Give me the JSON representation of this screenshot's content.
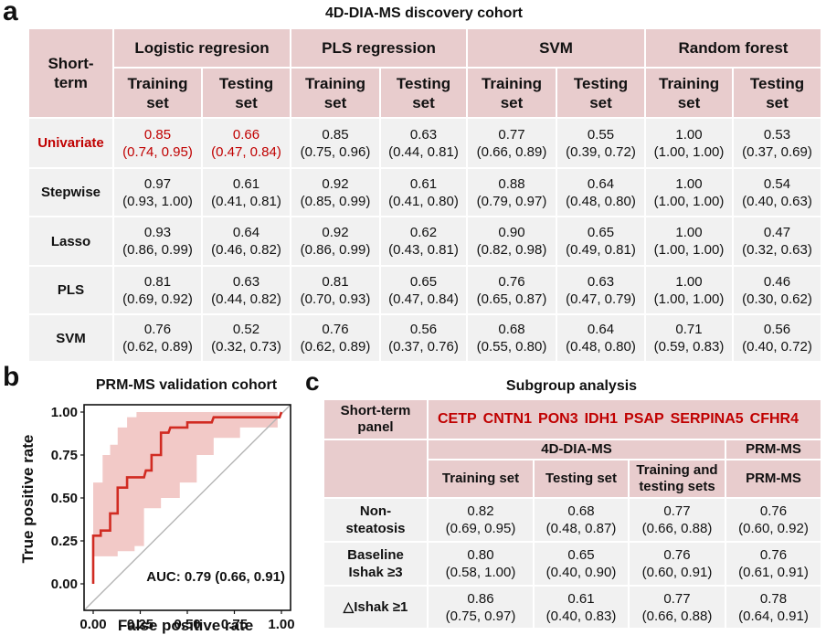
{
  "panels": {
    "a": {
      "letter": "a",
      "title": "4D-DIA-MS discovery cohort",
      "row_header": "Short-term",
      "models": [
        "Logistic regresion",
        "PLS regression",
        "SVM",
        "Random forest"
      ],
      "set_labels": [
        "Training set",
        "Testing set"
      ],
      "rows": [
        {
          "label": "Univariate",
          "highlight": true,
          "cells": [
            {
              "auc": "0.85",
              "ci": "(0.74, 0.95)",
              "red": true
            },
            {
              "auc": "0.66",
              "ci": "(0.47, 0.84)",
              "red": true
            },
            {
              "auc": "0.85",
              "ci": "(0.75, 0.96)"
            },
            {
              "auc": "0.63",
              "ci": "(0.44, 0.81)"
            },
            {
              "auc": "0.77",
              "ci": "(0.66, 0.89)"
            },
            {
              "auc": "0.55",
              "ci": "(0.39, 0.72)"
            },
            {
              "auc": "1.00",
              "ci": "(1.00, 1.00)"
            },
            {
              "auc": "0.53",
              "ci": "(0.37, 0.69)"
            }
          ]
        },
        {
          "label": "Stepwise",
          "cells": [
            {
              "auc": "0.97",
              "ci": "(0.93, 1.00)"
            },
            {
              "auc": "0.61",
              "ci": "(0.41, 0.81)"
            },
            {
              "auc": "0.92",
              "ci": "(0.85, 0.99)"
            },
            {
              "auc": "0.61",
              "ci": "(0.41, 0.80)"
            },
            {
              "auc": "0.88",
              "ci": "(0.79, 0.97)"
            },
            {
              "auc": "0.64",
              "ci": "(0.48, 0.80)"
            },
            {
              "auc": "1.00",
              "ci": "(1.00, 1.00)"
            },
            {
              "auc": "0.54",
              "ci": "(0.40, 0.63)"
            }
          ]
        },
        {
          "label": "Lasso",
          "cells": [
            {
              "auc": "0.93",
              "ci": "(0.86, 0.99)"
            },
            {
              "auc": "0.64",
              "ci": "(0.46, 0.82)"
            },
            {
              "auc": "0.92",
              "ci": "(0.86, 0.99)"
            },
            {
              "auc": "0.62",
              "ci": "(0.43, 0.81)"
            },
            {
              "auc": "0.90",
              "ci": "(0.82, 0.98)"
            },
            {
              "auc": "0.65",
              "ci": "(0.49, 0.81)"
            },
            {
              "auc": "1.00",
              "ci": "(1.00, 1.00)"
            },
            {
              "auc": "0.47",
              "ci": "(0.32, 0.63)"
            }
          ]
        },
        {
          "label": "PLS",
          "cells": [
            {
              "auc": "0.81",
              "ci": "(0.69, 0.92)"
            },
            {
              "auc": "0.63",
              "ci": "(0.44, 0.82)"
            },
            {
              "auc": "0.81",
              "ci": "(0.70, 0.93)"
            },
            {
              "auc": "0.65",
              "ci": "(0.47, 0.84)"
            },
            {
              "auc": "0.76",
              "ci": "(0.65, 0.87)"
            },
            {
              "auc": "0.63",
              "ci": "(0.47, 0.79)"
            },
            {
              "auc": "1.00",
              "ci": "(1.00, 1.00)"
            },
            {
              "auc": "0.46",
              "ci": "(0.30, 0.62)"
            }
          ]
        },
        {
          "label": "SVM",
          "cells": [
            {
              "auc": "0.76",
              "ci": "(0.62, 0.89)"
            },
            {
              "auc": "0.52",
              "ci": "(0.32, 0.73)"
            },
            {
              "auc": "0.76",
              "ci": "(0.62, 0.89)"
            },
            {
              "auc": "0.56",
              "ci": "(0.37, 0.76)"
            },
            {
              "auc": "0.68",
              "ci": "(0.55, 0.80)"
            },
            {
              "auc": "0.64",
              "ci": "(0.48, 0.80)"
            },
            {
              "auc": "0.71",
              "ci": "(0.59, 0.83)"
            },
            {
              "auc": "0.56",
              "ci": "(0.40, 0.72)"
            }
          ]
        }
      ]
    },
    "b": {
      "letter": "b"
    },
    "c": {
      "letter": "c",
      "title": "Subgroup analysis",
      "panel_label": "Short-term panel",
      "genes": [
        "CETP",
        "CNTN1",
        "PON3",
        "IDH1",
        "PSAP",
        "SERPINA5",
        "CFHR4"
      ],
      "group_4d": "4D-DIA-MS",
      "group_prm": "PRM-MS",
      "columns": [
        "Training set",
        "Testing set",
        "Training and testing sets",
        "PRM-MS"
      ],
      "rows": [
        {
          "label": "Non-steatosis",
          "cells": [
            {
              "auc": "0.82",
              "ci": "(0.69, 0.95)"
            },
            {
              "auc": "0.68",
              "ci": "(0.48, 0.87)"
            },
            {
              "auc": "0.77",
              "ci": "(0.66, 0.88)"
            },
            {
              "auc": "0.76",
              "ci": "(0.60, 0.92)"
            }
          ]
        },
        {
          "label": "Baseline Ishak ≥3",
          "cells": [
            {
              "auc": "0.80",
              "ci": "(0.58, 1.00)"
            },
            {
              "auc": "0.65",
              "ci": "(0.40, 0.90)"
            },
            {
              "auc": "0.76",
              "ci": "(0.60, 0.91)"
            },
            {
              "auc": "0.76",
              "ci": "(0.61, 0.91)"
            }
          ]
        },
        {
          "label": "△Ishak ≥1",
          "cells": [
            {
              "auc": "0.86",
              "ci": "(0.75, 0.97)"
            },
            {
              "auc": "0.61",
              "ci": "(0.40, 0.83)"
            },
            {
              "auc": "0.77",
              "ci": "(0.66, 0.88)"
            },
            {
              "auc": "0.78",
              "ci": "(0.64, 0.91)"
            }
          ]
        }
      ]
    }
  },
  "colors": {
    "header_bg": "#e8cccd",
    "cell_bg": "#f1f1f1",
    "highlight_text": "#c00000",
    "roc_line": "#d12b22",
    "roc_band": "#f2c9c7",
    "diagonal": "#b5b5b5"
  },
  "chart_data": {
    "type": "line",
    "title": "PRM-MS validation cohort",
    "xlabel": "False positive rate",
    "ylabel": "True positive rate",
    "xlim": [
      0,
      1
    ],
    "ylim": [
      0,
      1
    ],
    "xticks": [
      "0.00",
      "0.25",
      "0.50",
      "0.75",
      "1.00"
    ],
    "yticks": [
      "0.00",
      "0.25",
      "0.50",
      "0.75",
      "1.00"
    ],
    "grid": false,
    "annotation": "AUC: 0.79 (0.66, 0.91)",
    "series": [
      {
        "name": "ROC",
        "x": [
          0.0,
          0.0,
          0.01,
          0.04,
          0.04,
          0.09,
          0.09,
          0.13,
          0.13,
          0.18,
          0.18,
          0.27,
          0.28,
          0.31,
          0.31,
          0.36,
          0.36,
          0.4,
          0.41,
          0.5,
          0.5,
          0.63,
          0.64,
          0.99,
          1.0
        ],
        "y": [
          0.0,
          0.28,
          0.28,
          0.28,
          0.31,
          0.31,
          0.41,
          0.41,
          0.56,
          0.56,
          0.62,
          0.62,
          0.66,
          0.66,
          0.75,
          0.75,
          0.88,
          0.88,
          0.91,
          0.91,
          0.94,
          0.94,
          0.97,
          0.97,
          1.0
        ]
      },
      {
        "name": "CI upper",
        "x": [
          0.0,
          0.05,
          0.05,
          0.09,
          0.09,
          0.13,
          0.13,
          0.18,
          0.18,
          0.23,
          0.23,
          0.98
        ],
        "y": [
          0.59,
          0.59,
          0.75,
          0.75,
          0.81,
          0.81,
          0.91,
          0.91,
          0.97,
          0.97,
          1.0,
          1.0
        ]
      },
      {
        "name": "CI lower",
        "x": [
          0.0,
          0.13,
          0.13,
          0.22,
          0.22,
          0.27,
          0.27,
          0.36,
          0.36,
          0.46,
          0.46,
          0.55,
          0.55,
          0.64,
          0.64,
          0.78,
          0.78,
          0.98
        ],
        "y": [
          0.16,
          0.16,
          0.19,
          0.19,
          0.22,
          0.22,
          0.44,
          0.44,
          0.5,
          0.5,
          0.59,
          0.59,
          0.75,
          0.75,
          0.85,
          0.85,
          0.91,
          0.91
        ]
      },
      {
        "name": "Reference",
        "x": [
          0,
          1
        ],
        "y": [
          0,
          1
        ]
      }
    ]
  }
}
